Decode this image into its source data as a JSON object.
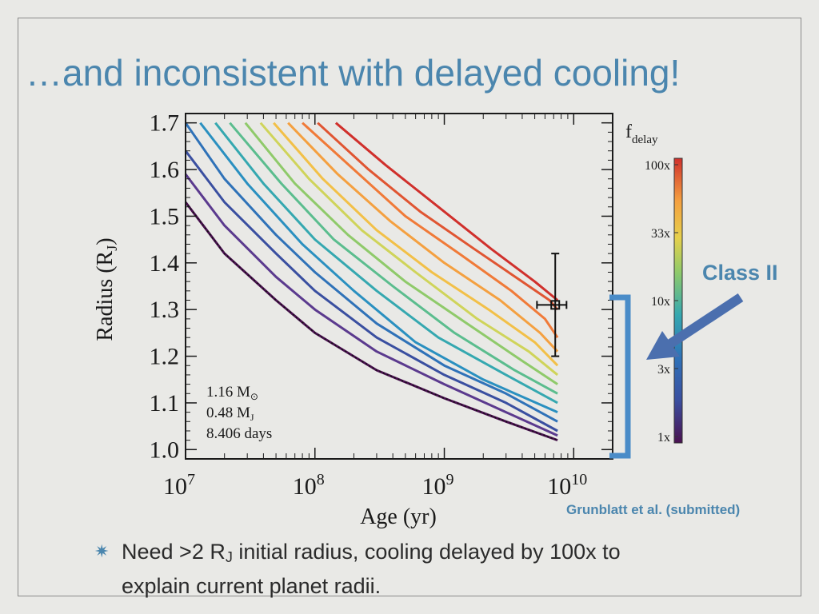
{
  "slide": {
    "title": "…and inconsistent with delayed cooling!",
    "bullet_parts": [
      "Need >2 R",
      "J",
      " initial radius, cooling delayed by 100x to explain current planet radii."
    ],
    "callout": "Class II",
    "citation": "Grunblatt et al. (submitted)"
  },
  "colors": {
    "accent": "#4b86ae",
    "arrow": "#4b6fae",
    "bracket": "#4a8cc8"
  },
  "chart_data": {
    "type": "line",
    "xlabel": "Age (yr)",
    "ylabel_main": "Radius (R",
    "ylabel_sub": "J",
    "ylabel_end": ")",
    "xscale": "log",
    "xlim": [
      10000000,
      20000000000
    ],
    "ylim": [
      0.98,
      1.72
    ],
    "xticks": [
      {
        "base": "10",
        "exp": "7",
        "value": 10000000
      },
      {
        "base": "10",
        "exp": "8",
        "value": 100000000
      },
      {
        "base": "10",
        "exp": "9",
        "value": 1000000000
      },
      {
        "base": "10",
        "exp": "10",
        "value": 10000000000
      }
    ],
    "yticks": [
      "1.0",
      "1.1",
      "1.2",
      "1.3",
      "1.4",
      "1.5",
      "1.6",
      "1.7"
    ],
    "annotation": {
      "line1": "1.16 M",
      "line1_sub": "⊙",
      "line2": "0.48 M",
      "line2_sub": "J",
      "line3": "8.406 days"
    },
    "colorbar": {
      "label": "f",
      "label_sub": "delay",
      "ticks": [
        "100x",
        "33x",
        "10x",
        "3x",
        "1x"
      ]
    },
    "series": [
      {
        "color": "#4a1150",
        "points": [
          [
            10000000,
            1.53
          ],
          [
            20000000,
            1.42
          ],
          [
            50000000,
            1.32
          ],
          [
            100000000,
            1.25
          ],
          [
            300000000,
            1.17
          ],
          [
            1000000000,
            1.11
          ],
          [
            3000000000,
            1.06
          ],
          [
            7500000000,
            1.02
          ]
        ]
      },
      {
        "color": "#5b3a8e",
        "points": [
          [
            10000000,
            1.59
          ],
          [
            20000000,
            1.48
          ],
          [
            50000000,
            1.37
          ],
          [
            100000000,
            1.3
          ],
          [
            300000000,
            1.21
          ],
          [
            1000000000,
            1.14
          ],
          [
            3000000000,
            1.08
          ],
          [
            7500000000,
            1.03
          ]
        ]
      },
      {
        "color": "#3a4fa0",
        "points": [
          [
            10000000,
            1.64
          ],
          [
            20000000,
            1.53
          ],
          [
            50000000,
            1.42
          ],
          [
            100000000,
            1.34
          ],
          [
            300000000,
            1.24
          ],
          [
            1000000000,
            1.16
          ],
          [
            3000000000,
            1.1
          ],
          [
            7500000000,
            1.04
          ]
        ]
      },
      {
        "color": "#2f72b8",
        "points": [
          [
            10000000,
            1.7
          ],
          [
            20000000,
            1.58
          ],
          [
            50000000,
            1.46
          ],
          [
            100000000,
            1.38
          ],
          [
            300000000,
            1.27
          ],
          [
            1000000000,
            1.18
          ],
          [
            3000000000,
            1.12
          ],
          [
            7500000000,
            1.06
          ]
        ]
      },
      {
        "color": "#2a90c0",
        "points": [
          [
            13000000,
            1.7
          ],
          [
            30000000,
            1.57
          ],
          [
            80000000,
            1.44
          ],
          [
            200000000,
            1.34
          ],
          [
            600000000,
            1.23
          ],
          [
            2000000000,
            1.15
          ],
          [
            7500000000,
            1.08
          ]
        ]
      },
      {
        "color": "#35a8b0",
        "points": [
          [
            17000000,
            1.7
          ],
          [
            40000000,
            1.57
          ],
          [
            100000000,
            1.45
          ],
          [
            300000000,
            1.34
          ],
          [
            900000000,
            1.24
          ],
          [
            3000000000,
            1.16
          ],
          [
            7500000000,
            1.1
          ]
        ]
      },
      {
        "color": "#5bbd8e",
        "points": [
          [
            22000000,
            1.7
          ],
          [
            55000000,
            1.57
          ],
          [
            140000000,
            1.45
          ],
          [
            400000000,
            1.35
          ],
          [
            1200000000,
            1.25
          ],
          [
            3500000000,
            1.17
          ],
          [
            7500000000,
            1.12
          ]
        ]
      },
      {
        "color": "#8fca6a",
        "points": [
          [
            29000000,
            1.7
          ],
          [
            70000000,
            1.57
          ],
          [
            180000000,
            1.46
          ],
          [
            500000000,
            1.36
          ],
          [
            1500000000,
            1.27
          ],
          [
            4000000000,
            1.19
          ],
          [
            7500000000,
            1.14
          ]
        ]
      },
      {
        "color": "#cfd45a",
        "points": [
          [
            38000000,
            1.7
          ],
          [
            90000000,
            1.58
          ],
          [
            230000000,
            1.47
          ],
          [
            600000000,
            1.38
          ],
          [
            1800000000,
            1.28
          ],
          [
            4500000000,
            1.21
          ],
          [
            7500000000,
            1.16
          ]
        ]
      },
      {
        "color": "#f2c048",
        "points": [
          [
            48000000,
            1.7
          ],
          [
            115000000,
            1.58
          ],
          [
            300000000,
            1.47
          ],
          [
            800000000,
            1.38
          ],
          [
            2200000000,
            1.3
          ],
          [
            5000000000,
            1.23
          ],
          [
            7500000000,
            1.18
          ]
        ]
      },
      {
        "color": "#f4a040",
        "points": [
          [
            62000000,
            1.7
          ],
          [
            150000000,
            1.59
          ],
          [
            380000000,
            1.49
          ],
          [
            1000000000,
            1.4
          ],
          [
            2700000000,
            1.32
          ],
          [
            5500000000,
            1.25
          ],
          [
            7500000000,
            1.21
          ]
        ]
      },
      {
        "color": "#f07a38",
        "points": [
          [
            80000000,
            1.7
          ],
          [
            200000000,
            1.6
          ],
          [
            500000000,
            1.5
          ],
          [
            1300000000,
            1.42
          ],
          [
            3300000000,
            1.34
          ],
          [
            6000000000,
            1.28
          ],
          [
            7500000000,
            1.24
          ]
        ]
      },
      {
        "color": "#e05532",
        "points": [
          [
            105000000,
            1.7
          ],
          [
            260000000,
            1.6
          ],
          [
            650000000,
            1.51
          ],
          [
            1700000000,
            1.43
          ],
          [
            4000000000,
            1.36
          ],
          [
            6500000000,
            1.32
          ],
          [
            7500000000,
            1.3
          ]
        ]
      },
      {
        "color": "#d0302c",
        "points": [
          [
            145000000,
            1.7
          ],
          [
            350000000,
            1.61
          ],
          [
            900000000,
            1.52
          ],
          [
            2300000000,
            1.43
          ],
          [
            5000000000,
            1.36
          ],
          [
            7500000000,
            1.32
          ]
        ]
      }
    ],
    "dotted_series_index": 0,
    "datapoint": {
      "x": 7200000000,
      "y": 1.31,
      "x_err_low": 5200000000,
      "x_err_high": 8800000000,
      "y_err_low": 1.2,
      "y_err_high": 1.42
    }
  }
}
